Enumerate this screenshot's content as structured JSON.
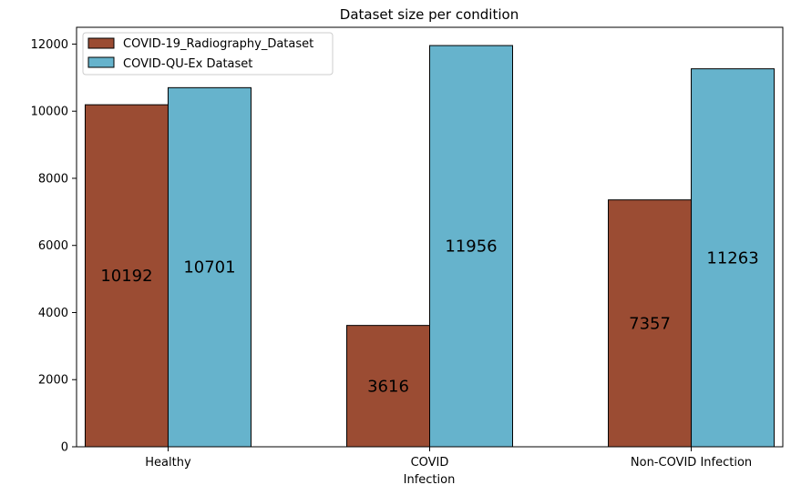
{
  "chart_data": {
    "type": "bar",
    "title": "Dataset size per condition",
    "xlabel": "Infection",
    "ylabel": "",
    "categories": [
      "Healthy",
      "COVID",
      "Non-COVID Infection"
    ],
    "series": [
      {
        "name": "COVID-19_Radiography_Dataset",
        "values": [
          10192,
          3616,
          7357
        ],
        "labels": [
          "10192",
          "3616",
          "7357"
        ],
        "color": "#9b4c33"
      },
      {
        "name": "COVID-QU-Ex Dataset",
        "values": [
          10701,
          11956,
          11263
        ],
        "labels": [
          "10701",
          "11956",
          "11263"
        ],
        "color": "#66b3cc"
      }
    ],
    "ylim": [
      0,
      12500
    ],
    "yticks": [
      0,
      2000,
      4000,
      6000,
      8000,
      10000,
      12000
    ],
    "ytick_labels": [
      "0",
      "2000",
      "4000",
      "6000",
      "8000",
      "10000",
      "12000"
    ],
    "grid": false,
    "legend_position": "top-left",
    "bar_edge_color": "#000000"
  }
}
